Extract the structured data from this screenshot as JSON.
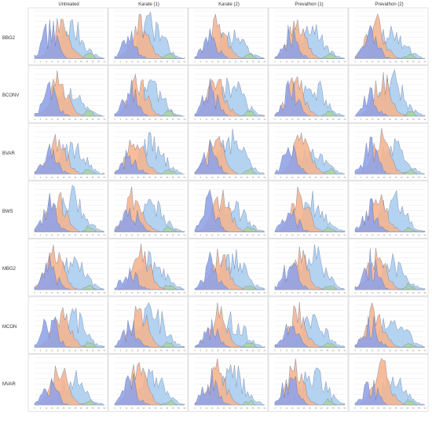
{
  "figure": {
    "columns": [
      "Untreated",
      "Karate (1)",
      "Karate (2)",
      "Prevathon (1)",
      "Prevathon (2)"
    ],
    "rows": [
      "BBG2",
      "BCONV",
      "BVAR",
      "BWS",
      "MBG2",
      "MCON",
      "MVAR"
    ]
  },
  "colors": {
    "series_a": "#a9cdef",
    "series_b": "#f4b48e",
    "series_c": "#8fa2e6",
    "series_d": "#a8d49c",
    "outline": "#5b6a90",
    "grid": "#e2e2e2",
    "frame": "#cfcfcf"
  },
  "chart_data": {
    "type": "area",
    "layout": "small-multiples grid",
    "rows": [
      "BBG2",
      "BCONV",
      "BVAR",
      "BWS",
      "MBG2",
      "MCON",
      "MVAR"
    ],
    "columns": [
      "Untreated",
      "Karate (1)",
      "Karate (2)",
      "Prevathon (1)",
      "Prevathon (2)"
    ],
    "x_range": [
      0,
      60
    ],
    "y_range": [
      0,
      0.9
    ],
    "grid": true,
    "legend": "none",
    "series_colors": [
      "#a9cdef",
      "#f4b48e",
      "#8fa2e6",
      "#a8d49c"
    ],
    "panel": {
      "blue_peak_pos": 0.55,
      "orange_peak_pos": 0.33,
      "purple_peak_pos": 0.22,
      "green_peak_pos": 0.78,
      "blue_height": 0.55,
      "orange_height": 0.8,
      "purple_height": 0.45,
      "green_height": 0.12
    }
  }
}
